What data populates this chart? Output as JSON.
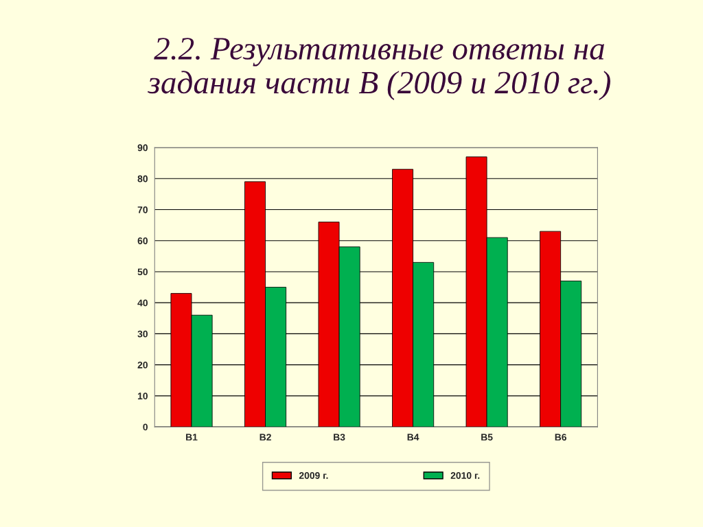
{
  "chart_data": {
    "type": "bar",
    "title": "2.2. Результативные ответы на\nзадания части В (2009 и 2010 гг.)",
    "categories": [
      "B1",
      "B2",
      "B3",
      "B4",
      "B5",
      "B6"
    ],
    "series": [
      {
        "name": "2009 г.",
        "color": "#ee0000",
        "values": [
          43,
          79,
          66,
          83,
          87,
          63
        ]
      },
      {
        "name": "2010 г.",
        "color": "#00b050",
        "values": [
          36,
          45,
          58,
          53,
          61,
          47
        ]
      }
    ],
    "ylim": [
      0,
      90
    ],
    "yticks": [
      0,
      10,
      20,
      30,
      40,
      50,
      60,
      70,
      80,
      90
    ],
    "grid": "y",
    "legend": "bottom"
  }
}
